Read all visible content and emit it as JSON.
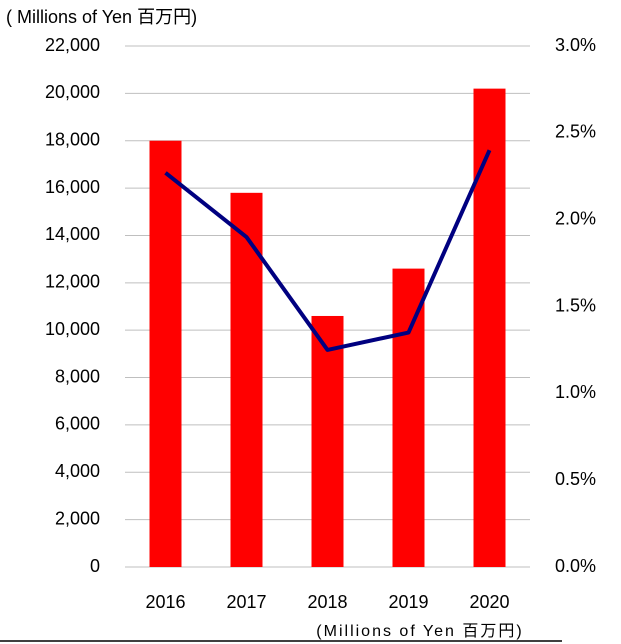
{
  "chart_data": {
    "type": "bar-line",
    "title": "( Millions of Yen 百万円)",
    "footnote": "(Millions of Yen 百万円)",
    "categories": [
      "2016",
      "2017",
      "2018",
      "2019",
      "2020"
    ],
    "series": [
      {
        "type": "bar",
        "color": "#ff0000",
        "values": [
          18000,
          15800,
          10600,
          12600,
          20200
        ]
      },
      {
        "type": "line",
        "axis": "y2",
        "color": "#000080",
        "values": [
          2.27,
          1.9,
          1.25,
          1.35,
          2.4
        ]
      }
    ],
    "ylim": [
      0,
      22000
    ],
    "yticks": [
      0,
      {
        "value": 2000,
        "label": "2,000"
      },
      {
        "value": 4000,
        "label": "4,000"
      },
      {
        "value": 6000,
        "label": "6,000"
      },
      {
        "value": 8000,
        "label": "8,000"
      },
      {
        "value": 10000,
        "label": "10,000"
      },
      {
        "value": 12000,
        "label": "12,000"
      },
      {
        "value": 14000,
        "label": "14,000"
      },
      {
        "value": 16000,
        "label": "16,000"
      },
      {
        "value": 18000,
        "label": "18,000"
      },
      {
        "value": 20000,
        "label": "20,000"
      },
      {
        "value": 22000,
        "label": "22,000"
      }
    ],
    "y2lim": [
      0,
      3
    ],
    "y2ticks": [
      {
        "value": 0,
        "label": "0.0%"
      },
      {
        "value": 0.5,
        "label": "0.5%"
      },
      {
        "value": 1,
        "label": "1.0%"
      },
      {
        "value": 1.5,
        "label": "1.5%"
      },
      {
        "value": 2,
        "label": "2.0%"
      },
      {
        "value": 2.5,
        "label": "2.5%"
      },
      {
        "value": 3,
        "label": "3.0%"
      }
    ],
    "grid": true
  }
}
